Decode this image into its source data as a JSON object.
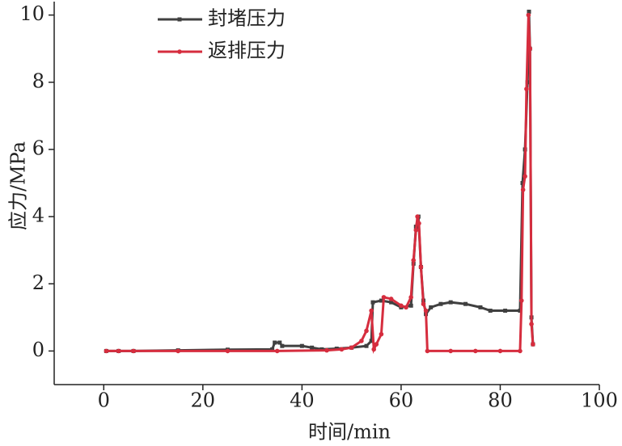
{
  "chart_data": {
    "type": "line",
    "x_label": "时间/min",
    "y_label": "应力/MPa",
    "xlim": [
      -10,
      100
    ],
    "xticks": [
      0,
      20,
      40,
      60,
      80,
      100
    ],
    "ylim": [
      -1,
      10.4
    ],
    "yticks": [
      0,
      2,
      4,
      6,
      8,
      10
    ],
    "legend": "top-left",
    "series": [
      {
        "name": "封堵压力",
        "color": "#404040",
        "marker": "square",
        "x": [
          0.5,
          3,
          6,
          15,
          25,
          34,
          34.5,
          35.5,
          36,
          40,
          42,
          44,
          47,
          50,
          53,
          54,
          54.3,
          56,
          58,
          60,
          62,
          62.5,
          63,
          63.5,
          64,
          64.5,
          65,
          66,
          68,
          70,
          73,
          76,
          78,
          81,
          84,
          84.5,
          85,
          85.5,
          85.8,
          86,
          86.3,
          86.6
        ],
        "values": [
          0,
          0,
          0,
          0.02,
          0.04,
          0.05,
          0.25,
          0.25,
          0.15,
          0.15,
          0.1,
          0.05,
          0.07,
          0.1,
          0.15,
          0.3,
          1.45,
          1.5,
          1.45,
          1.3,
          1.35,
          2.6,
          3.7,
          4.0,
          2.5,
          1.5,
          1.1,
          1.3,
          1.4,
          1.45,
          1.4,
          1.3,
          1.2,
          1.2,
          1.2,
          5,
          6,
          8,
          10.1,
          9,
          1,
          0.2
        ]
      },
      {
        "name": "返排压力",
        "color": "#d62d3e",
        "marker": "circle",
        "x": [
          0.5,
          3,
          6,
          15,
          25,
          35,
          45,
          48,
          50,
          52,
          53,
          54,
          54.5,
          55,
          56,
          56.5,
          58,
          60,
          61,
          62,
          62.5,
          63,
          63.3,
          63.6,
          64,
          64.5,
          65,
          65.3,
          70,
          75,
          80,
          84,
          84.3,
          84.6,
          85,
          85.3,
          85.7,
          86,
          86.3,
          86.6
        ],
        "values": [
          0,
          0,
          0,
          0,
          0,
          0,
          0.02,
          0.05,
          0.1,
          0.3,
          0.6,
          1.2,
          0.05,
          0.2,
          0.5,
          1.6,
          1.55,
          1.35,
          1.3,
          1.6,
          2.7,
          3.6,
          4.0,
          3.8,
          2.5,
          1.4,
          1.2,
          0,
          0,
          0,
          0,
          0,
          1.5,
          4.8,
          5.2,
          7.8,
          10,
          9,
          0.8,
          0.2
        ]
      }
    ]
  }
}
